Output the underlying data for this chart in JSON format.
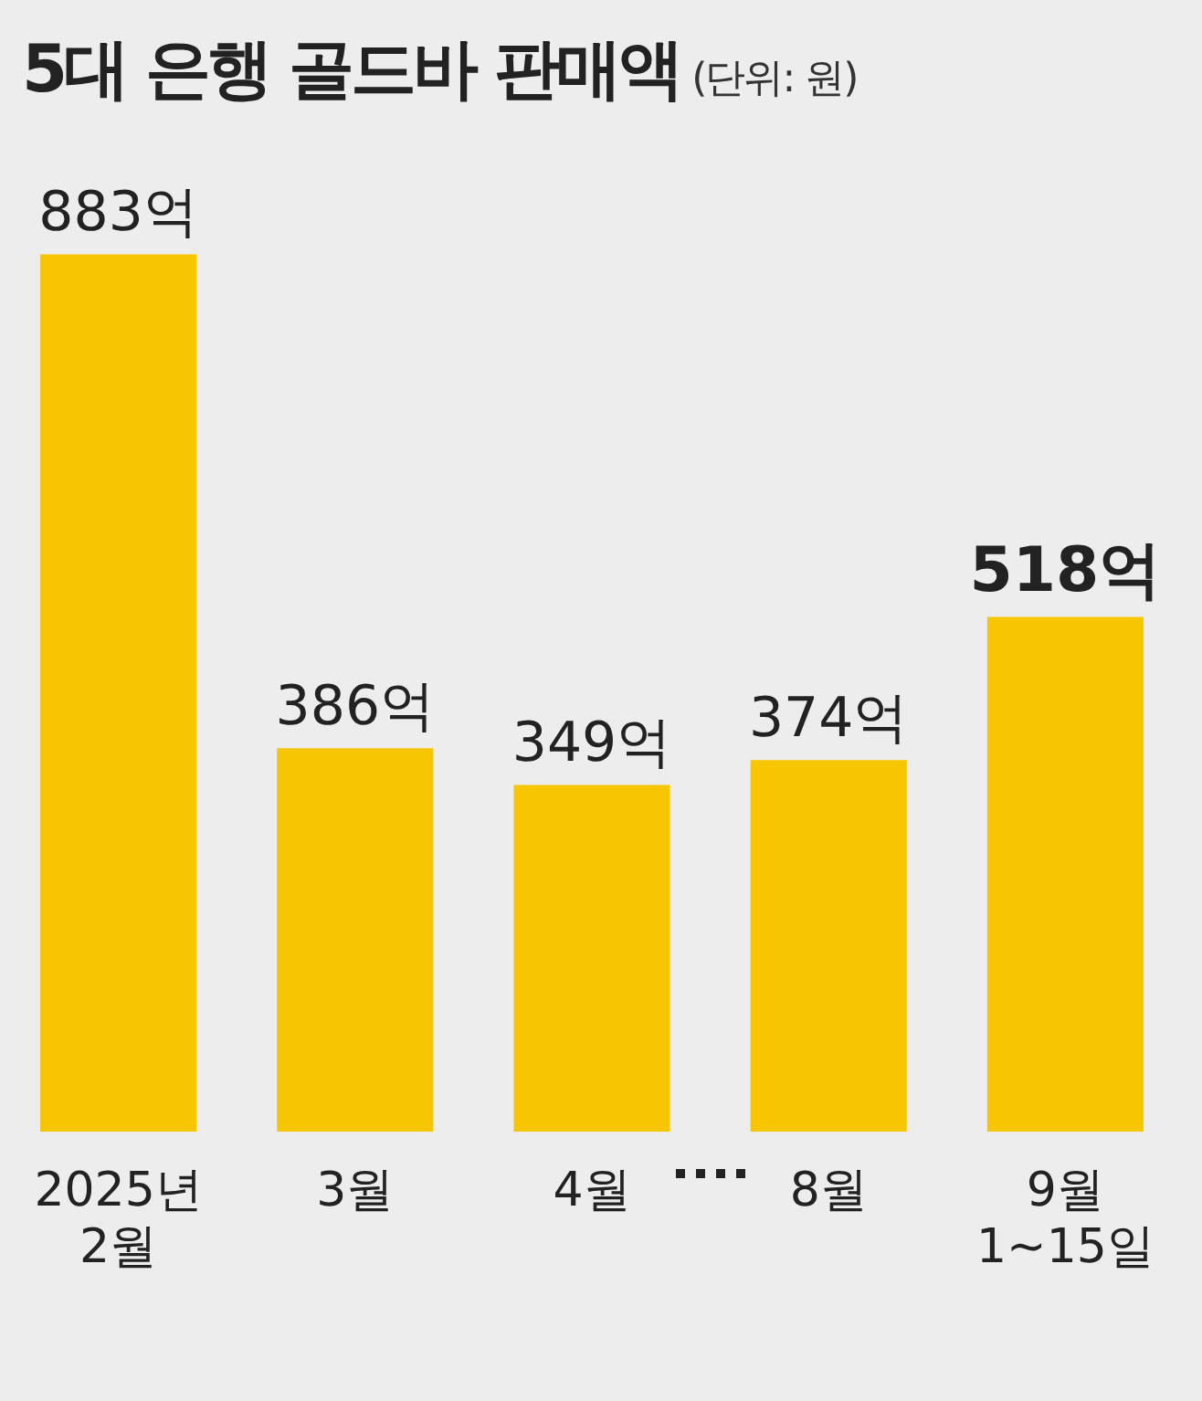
{
  "chart_data": {
    "type": "bar",
    "title": "5대 은행 골드바 판매액",
    "subtitle": "(단위: 원)",
    "categories": [
      "2025년 2월",
      "3월",
      "4월",
      "8월",
      "9월 1~15일"
    ],
    "values": [
      883,
      386,
      349,
      374,
      518
    ],
    "value_labels": [
      "883억",
      "386억",
      "349억",
      "374억",
      "518억"
    ],
    "color": "#f7c600",
    "grid": false,
    "legend": false
  }
}
